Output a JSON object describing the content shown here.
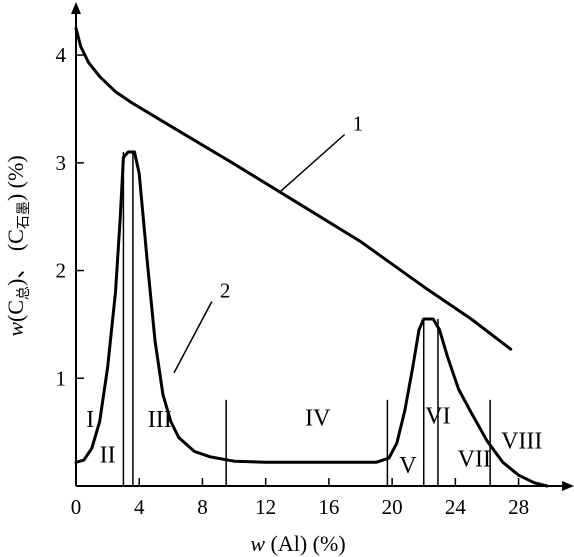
{
  "chart_data": {
    "type": "line",
    "title": "",
    "xlabel": {
      "var": "w",
      "rest": " (Al) (%)"
    },
    "ylabel": {
      "var": "w",
      "part1": "(C",
      "sub1": "总",
      "part2": ")、 (C",
      "sub2": "石墨",
      "part3": ") (%)"
    },
    "xlim": [
      0,
      31
    ],
    "ylim": [
      0,
      4.4
    ],
    "x_ticks": [
      0,
      4,
      8,
      12,
      16,
      20,
      24,
      28
    ],
    "y_ticks": [
      1,
      2,
      3,
      4
    ],
    "series": [
      {
        "name": "1",
        "points": [
          [
            0,
            4.25
          ],
          [
            0.3,
            4.08
          ],
          [
            0.8,
            3.93
          ],
          [
            1.5,
            3.8
          ],
          [
            2.5,
            3.66
          ],
          [
            3.5,
            3.56
          ],
          [
            6,
            3.34
          ],
          [
            10,
            2.99
          ],
          [
            14,
            2.63
          ],
          [
            18,
            2.27
          ],
          [
            22,
            1.85
          ],
          [
            25,
            1.55
          ],
          [
            27.5,
            1.27
          ]
        ]
      },
      {
        "name": "2",
        "points": [
          [
            0,
            0.22
          ],
          [
            0.5,
            0.24
          ],
          [
            1.0,
            0.35
          ],
          [
            1.5,
            0.6
          ],
          [
            2.0,
            1.1
          ],
          [
            2.5,
            1.8
          ],
          [
            2.8,
            2.5
          ],
          [
            3.0,
            3.05
          ],
          [
            3.3,
            3.1
          ],
          [
            3.7,
            3.1
          ],
          [
            4.0,
            2.9
          ],
          [
            4.5,
            2.1
          ],
          [
            5.0,
            1.35
          ],
          [
            5.5,
            0.85
          ],
          [
            6.0,
            0.6
          ],
          [
            6.5,
            0.45
          ],
          [
            7.5,
            0.32
          ],
          [
            8.5,
            0.27
          ],
          [
            10,
            0.23
          ],
          [
            12,
            0.22
          ],
          [
            16,
            0.22
          ],
          [
            19,
            0.22
          ],
          [
            19.8,
            0.26
          ],
          [
            20.3,
            0.4
          ],
          [
            20.8,
            0.7
          ],
          [
            21.3,
            1.1
          ],
          [
            21.7,
            1.45
          ],
          [
            22.0,
            1.55
          ],
          [
            22.6,
            1.55
          ],
          [
            23.0,
            1.45
          ],
          [
            23.5,
            1.2
          ],
          [
            24.2,
            0.9
          ],
          [
            25.0,
            0.68
          ],
          [
            26.0,
            0.42
          ],
          [
            27.0,
            0.22
          ],
          [
            28.0,
            0.1
          ],
          [
            29.0,
            0.03
          ],
          [
            29.8,
            0.0
          ]
        ]
      }
    ],
    "series_labels": [
      {
        "text": "1",
        "at": [
          17.5,
          3.3
        ]
      },
      {
        "text": "2",
        "at": [
          9.1,
          1.75
        ]
      }
    ],
    "region_dividers": [
      {
        "x": 3.0,
        "y_top": 3.1
      },
      {
        "x": 3.6,
        "y_top": 3.1
      },
      {
        "x": 9.5,
        "y_top": 0.8
      },
      {
        "x": 19.7,
        "y_top": 0.8
      },
      {
        "x": 22.0,
        "y_top": 1.55
      },
      {
        "x": 22.9,
        "y_top": 1.55
      },
      {
        "x": 26.2,
        "y_top": 0.8
      }
    ],
    "regions": [
      {
        "label": "I",
        "at": [
          0.9,
          0.55
        ]
      },
      {
        "label": "II",
        "at": [
          2.0,
          0.22
        ]
      },
      {
        "label": "III",
        "at": [
          5.3,
          0.55
        ]
      },
      {
        "label": "IV",
        "at": [
          15.3,
          0.56
        ]
      },
      {
        "label": "V",
        "at": [
          21.0,
          0.12
        ]
      },
      {
        "label": "VI",
        "at": [
          22.9,
          0.58
        ]
      },
      {
        "label": "VII",
        "at": [
          25.2,
          0.18
        ]
      },
      {
        "label": "VIII",
        "at": [
          28.2,
          0.35
        ]
      }
    ]
  }
}
